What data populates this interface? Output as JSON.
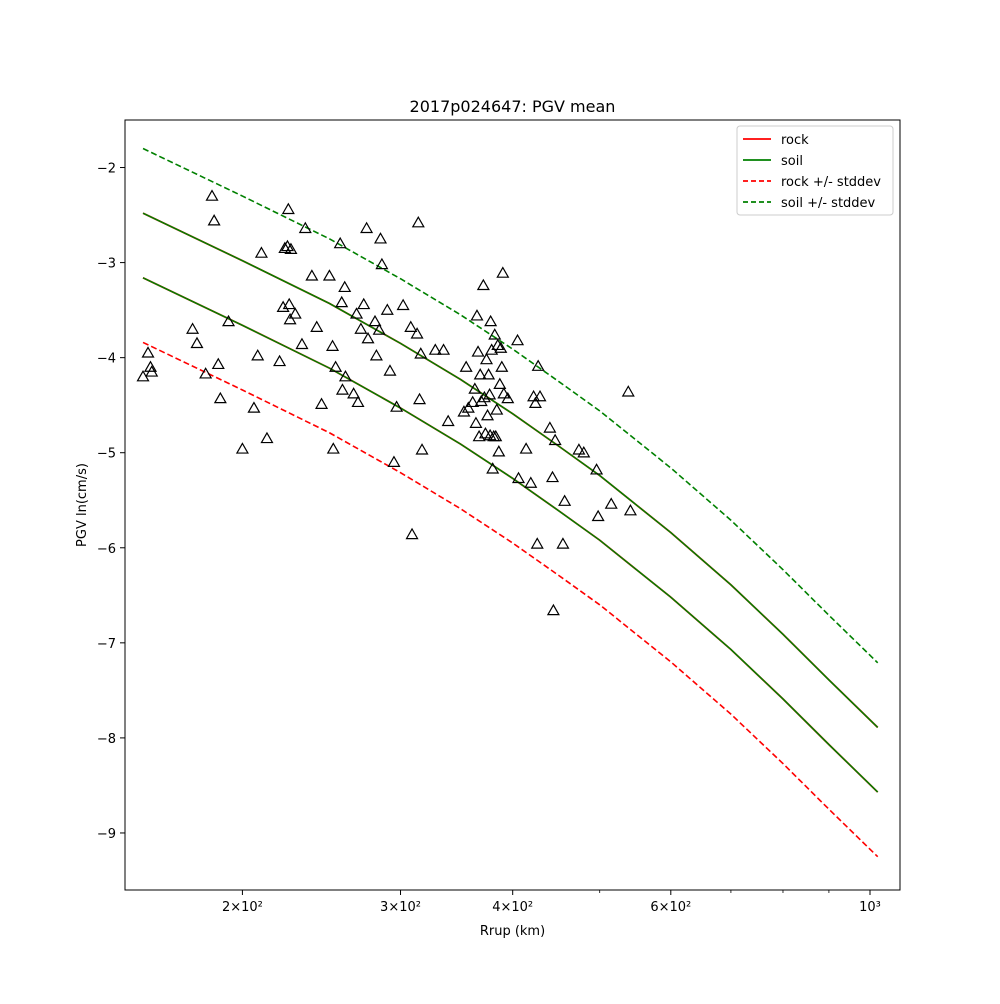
{
  "chart_data": {
    "type": "scatter",
    "title": "2017p024647: PGV mean",
    "xlabel": "Rrup (km)",
    "ylabel": "PGV ln(cm/s)",
    "x_scale": "log",
    "xlim": [
      148,
      1080
    ],
    "ylim": [
      -9.6,
      -1.5
    ],
    "x_ticks": [
      {
        "value": 200,
        "label": "2×10²"
      },
      {
        "value": 300,
        "label": "3×10²"
      },
      {
        "value": 400,
        "label": "4×10²"
      },
      {
        "value": 600,
        "label": "6×10²"
      },
      {
        "value": 1000,
        "label": "10³"
      }
    ],
    "x_minor_ticks": [
      500,
      700,
      800,
      900
    ],
    "y_ticks": [
      {
        "value": -2,
        "label": "−2"
      },
      {
        "value": -3,
        "label": "−3"
      },
      {
        "value": -4,
        "label": "−4"
      },
      {
        "value": -5,
        "label": "−5"
      },
      {
        "value": -6,
        "label": "−6"
      },
      {
        "value": -7,
        "label": "−7"
      },
      {
        "value": -8,
        "label": "−8"
      },
      {
        "value": -9,
        "label": "−9"
      }
    ],
    "grid": false,
    "legend_position": "top-right",
    "colors": {
      "rock": "#ff0000",
      "soil": "#008000",
      "marker": "#000000"
    },
    "lines": [
      {
        "name": "rock",
        "color": "#ff0000",
        "style": "solid",
        "width": 1.8,
        "x": [
          155,
          200,
          250,
          300,
          350,
          400,
          450,
          500,
          600,
          700,
          800,
          900,
          1020
        ],
        "y": [
          -2.48,
          -2.98,
          -3.43,
          -3.85,
          -4.23,
          -4.59,
          -4.93,
          -5.24,
          -5.84,
          -6.39,
          -6.91,
          -7.39,
          -7.89
        ]
      },
      {
        "name": "soil",
        "color": "#008000",
        "style": "solid",
        "width": 1.5,
        "x": [
          155,
          200,
          250,
          300,
          350,
          400,
          450,
          500,
          600,
          700,
          800,
          900,
          1020
        ],
        "y": [
          -2.48,
          -2.98,
          -3.43,
          -3.85,
          -4.23,
          -4.59,
          -4.93,
          -5.24,
          -5.84,
          -6.39,
          -6.91,
          -7.39,
          -7.89
        ]
      },
      {
        "name": "rock",
        "color": "#ff0000",
        "style": "solid",
        "width": 1.8,
        "x": [
          155,
          200,
          250,
          300,
          350,
          400,
          450,
          500,
          600,
          700,
          800,
          900,
          1020
        ],
        "y": [
          -3.16,
          -3.66,
          -4.11,
          -4.53,
          -4.91,
          -5.27,
          -5.61,
          -5.92,
          -6.52,
          -7.07,
          -7.59,
          -8.07,
          -8.57
        ]
      },
      {
        "name": "soil",
        "color": "#008000",
        "style": "solid",
        "width": 1.5,
        "x": [
          155,
          200,
          250,
          300,
          350,
          400,
          450,
          500,
          600,
          700,
          800,
          900,
          1020
        ],
        "y": [
          -3.16,
          -3.66,
          -4.11,
          -4.53,
          -4.91,
          -5.27,
          -5.61,
          -5.92,
          -6.52,
          -7.07,
          -7.59,
          -8.07,
          -8.57
        ]
      },
      {
        "name": "rock +/- stddev",
        "color": "#ff0000",
        "style": "dashed",
        "width": 1.6,
        "x": [
          155,
          200,
          250,
          300,
          350,
          400,
          450,
          500,
          600,
          700,
          800,
          900,
          1020
        ],
        "y": [
          -3.84,
          -4.34,
          -4.79,
          -5.21,
          -5.59,
          -5.95,
          -6.29,
          -6.6,
          -7.2,
          -7.75,
          -8.27,
          -8.75,
          -9.25
        ]
      },
      {
        "name": "soil +/- stddev",
        "color": "#008000",
        "style": "dashed",
        "width": 1.6,
        "x": [
          155,
          200,
          250,
          300,
          350,
          400,
          450,
          500,
          600,
          700,
          800,
          900,
          1020
        ],
        "y": [
          -1.8,
          -2.3,
          -2.75,
          -3.17,
          -3.55,
          -3.91,
          -4.25,
          -4.56,
          -5.16,
          -5.71,
          -6.23,
          -6.71,
          -7.21
        ]
      }
    ],
    "legend": [
      {
        "label": "rock",
        "color": "#ff0000",
        "style": "solid"
      },
      {
        "label": "soil",
        "color": "#008000",
        "style": "solid"
      },
      {
        "label": "rock +/- stddev",
        "color": "#ff0000",
        "style": "dashed"
      },
      {
        "label": "soil +/- stddev",
        "color": "#008000",
        "style": "dashed"
      }
    ],
    "points": [
      [
        155,
        -4.2
      ],
      [
        157,
        -3.95
      ],
      [
        158,
        -4.1
      ],
      [
        158.5,
        -4.15
      ],
      [
        176,
        -3.7
      ],
      [
        178,
        -3.85
      ],
      [
        182,
        -4.17
      ],
      [
        185,
        -2.3
      ],
      [
        186,
        -2.56
      ],
      [
        188,
        -4.07
      ],
      [
        189,
        -4.43
      ],
      [
        193,
        -3.62
      ],
      [
        200,
        -4.96
      ],
      [
        206,
        -4.53
      ],
      [
        208,
        -3.98
      ],
      [
        210,
        -2.9
      ],
      [
        213,
        -4.85
      ],
      [
        220,
        -4.04
      ],
      [
        222,
        -3.47
      ],
      [
        223,
        -2.85
      ],
      [
        224.5,
        -2.83
      ],
      [
        225,
        -2.44
      ],
      [
        225.5,
        -3.44
      ],
      [
        226,
        -3.6
      ],
      [
        226.5,
        -2.86
      ],
      [
        229,
        -3.54
      ],
      [
        233,
        -3.86
      ],
      [
        235,
        -2.64
      ],
      [
        239,
        -3.14
      ],
      [
        242,
        -3.68
      ],
      [
        245,
        -4.49
      ],
      [
        250,
        -3.14
      ],
      [
        252,
        -3.88
      ],
      [
        252.5,
        -4.96
      ],
      [
        254,
        -4.1
      ],
      [
        257,
        -2.8
      ],
      [
        258,
        -3.42
      ],
      [
        258.5,
        -4.34
      ],
      [
        260,
        -3.26
      ],
      [
        260.5,
        -4.2
      ],
      [
        266,
        -4.38
      ],
      [
        268,
        -3.54
      ],
      [
        269,
        -4.47
      ],
      [
        271,
        -3.7
      ],
      [
        273,
        -3.44
      ],
      [
        275,
        -2.64
      ],
      [
        276,
        -3.8
      ],
      [
        281,
        -3.62
      ],
      [
        282,
        -3.98
      ],
      [
        284,
        -3.71
      ],
      [
        285,
        -2.75
      ],
      [
        286,
        -3.02
      ],
      [
        290,
        -3.5
      ],
      [
        292,
        -4.14
      ],
      [
        295,
        -5.1
      ],
      [
        297,
        -4.52
      ],
      [
        302,
        -3.45
      ],
      [
        308,
        -3.68
      ],
      [
        309,
        -5.86
      ],
      [
        313,
        -3.75
      ],
      [
        314,
        -2.58
      ],
      [
        315,
        -4.44
      ],
      [
        316,
        -3.96
      ],
      [
        317,
        -4.97
      ],
      [
        328,
        -3.92
      ],
      [
        335,
        -3.92
      ],
      [
        339,
        -4.67
      ],
      [
        353,
        -4.57
      ],
      [
        355,
        -4.1
      ],
      [
        357,
        -4.53
      ],
      [
        361,
        -4.47
      ],
      [
        363,
        -4.33
      ],
      [
        364,
        -4.69
      ],
      [
        365,
        -3.56
      ],
      [
        366,
        -3.94
      ],
      [
        367,
        -4.83
      ],
      [
        368,
        -4.18
      ],
      [
        369,
        -4.46
      ],
      [
        371,
        -3.24
      ],
      [
        372,
        -4.42
      ],
      [
        373,
        -4.8
      ],
      [
        374,
        -4.02
      ],
      [
        375,
        -4.61
      ],
      [
        376,
        -4.18
      ],
      [
        377,
        -4.39
      ],
      [
        377.5,
        -4.82
      ],
      [
        378,
        -3.62
      ],
      [
        379,
        -3.92
      ],
      [
        380,
        -5.17
      ],
      [
        381,
        -4.83
      ],
      [
        382,
        -3.76
      ],
      [
        383,
        -4.83
      ],
      [
        384,
        -4.55
      ],
      [
        385,
        -3.87
      ],
      [
        386,
        -4.99
      ],
      [
        387,
        -4.28
      ],
      [
        388,
        -3.9
      ],
      [
        389,
        -4.1
      ],
      [
        390,
        -3.11
      ],
      [
        391,
        -4.38
      ],
      [
        395,
        -4.43
      ],
      [
        405,
        -3.82
      ],
      [
        406,
        -5.27
      ],
      [
        414,
        -4.96
      ],
      [
        419,
        -5.32
      ],
      [
        422,
        -4.41
      ],
      [
        424,
        -4.48
      ],
      [
        426,
        -5.96
      ],
      [
        427,
        -4.09
      ],
      [
        429,
        -4.41
      ],
      [
        440,
        -4.74
      ],
      [
        443,
        -5.26
      ],
      [
        444,
        -6.66
      ],
      [
        446,
        -4.87
      ],
      [
        455,
        -5.96
      ],
      [
        457,
        -5.51
      ],
      [
        474,
        -4.97
      ],
      [
        480,
        -5.0
      ],
      [
        496,
        -5.18
      ],
      [
        498,
        -5.67
      ],
      [
        515,
        -5.54
      ],
      [
        538,
        -4.36
      ],
      [
        541,
        -5.61
      ]
    ]
  }
}
